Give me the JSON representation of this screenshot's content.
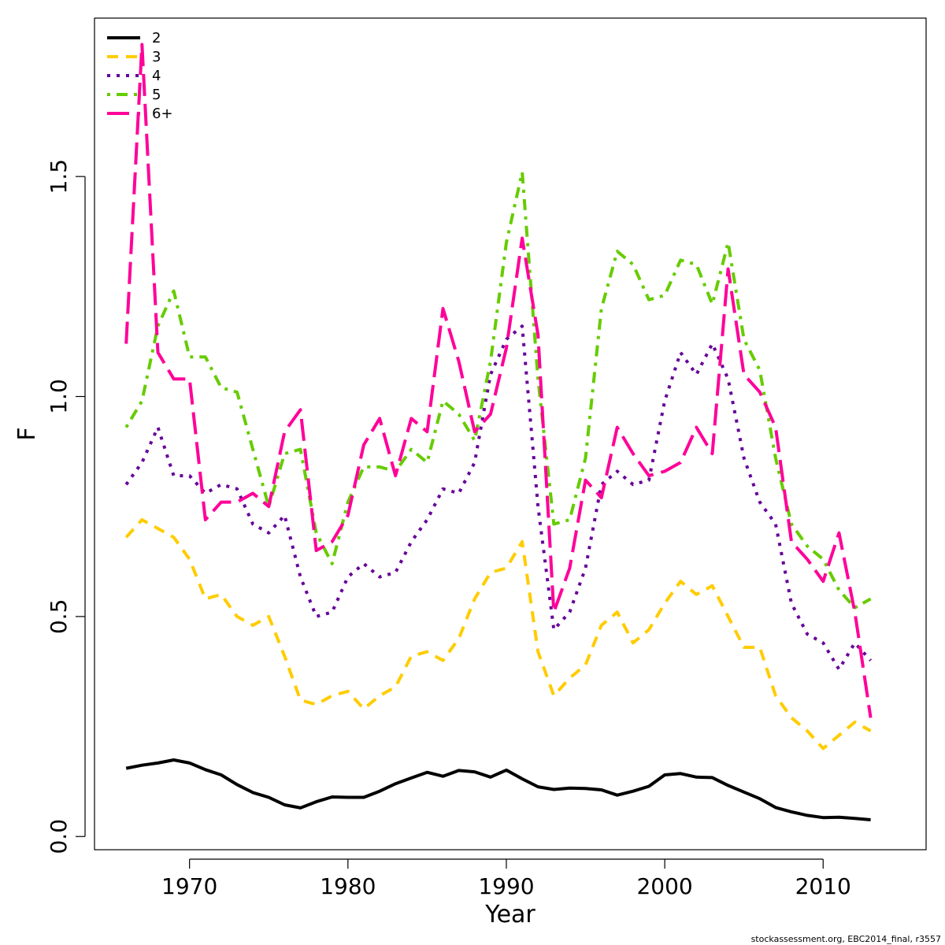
{
  "chart_data": {
    "type": "line",
    "xlabel": "Year",
    "ylabel": "F",
    "xlim": [
      1964,
      2016.5
    ],
    "ylim": [
      -0.03,
      1.86
    ],
    "xticks": [
      1970,
      1980,
      1990,
      2000,
      2010
    ],
    "yticks": [
      0.0,
      0.5,
      1.0,
      1.5
    ],
    "xtick_labels": [
      "1970",
      "1980",
      "1990",
      "2000",
      "2010"
    ],
    "ytick_labels": [
      "0.0",
      "0.5",
      "1.0",
      "1.5"
    ],
    "grid": false,
    "legend_position": "top-left",
    "x": [
      1966,
      1967,
      1968,
      1969,
      1970,
      1971,
      1972,
      1973,
      1974,
      1975,
      1976,
      1977,
      1978,
      1979,
      1980,
      1981,
      1982,
      1983,
      1984,
      1985,
      1986,
      1987,
      1988,
      1989,
      1990,
      1991,
      1992,
      1993,
      1994,
      1995,
      1996,
      1997,
      1998,
      1999,
      2000,
      2001,
      2002,
      2003,
      2004,
      2005,
      2006,
      2007,
      2008,
      2009,
      2010,
      2011,
      2012,
      2013
    ],
    "series": [
      {
        "name": "2",
        "color": "#000000",
        "dash": "solid",
        "values": [
          0.155,
          0.162,
          0.167,
          0.174,
          0.167,
          0.152,
          0.14,
          0.118,
          0.1,
          0.089,
          0.072,
          0.065,
          0.079,
          0.09,
          0.089,
          0.089,
          0.103,
          0.12,
          0.133,
          0.146,
          0.137,
          0.15,
          0.147,
          0.135,
          0.151,
          0.131,
          0.113,
          0.107,
          0.11,
          0.109,
          0.106,
          0.094,
          0.103,
          0.114,
          0.14,
          0.143,
          0.135,
          0.134,
          0.116,
          0.101,
          0.086,
          0.066,
          0.056,
          0.048,
          0.043,
          0.044,
          0.041,
          0.038
        ]
      },
      {
        "name": "3",
        "color": "#FFCC00",
        "dash": "dashed",
        "values": [
          0.68,
          0.72,
          0.7,
          0.68,
          0.63,
          0.54,
          0.55,
          0.5,
          0.48,
          0.5,
          0.41,
          0.31,
          0.3,
          0.32,
          0.33,
          0.29,
          0.32,
          0.34,
          0.41,
          0.42,
          0.4,
          0.45,
          0.54,
          0.6,
          0.61,
          0.67,
          0.42,
          0.32,
          0.36,
          0.39,
          0.48,
          0.51,
          0.44,
          0.47,
          0.53,
          0.58,
          0.55,
          0.57,
          0.5,
          0.43,
          0.43,
          0.32,
          0.27,
          0.24,
          0.2,
          0.23,
          0.26,
          0.24
        ]
      },
      {
        "name": "4",
        "color": "#660099",
        "dash": "dotted",
        "values": [
          0.8,
          0.85,
          0.93,
          0.82,
          0.82,
          0.78,
          0.8,
          0.79,
          0.71,
          0.69,
          0.73,
          0.59,
          0.5,
          0.51,
          0.59,
          0.62,
          0.59,
          0.6,
          0.67,
          0.72,
          0.79,
          0.78,
          0.85,
          1.05,
          1.13,
          1.16,
          0.75,
          0.47,
          0.51,
          0.61,
          0.8,
          0.83,
          0.8,
          0.81,
          0.99,
          1.1,
          1.05,
          1.12,
          1.04,
          0.86,
          0.76,
          0.71,
          0.53,
          0.46,
          0.44,
          0.38,
          0.44,
          0.4
        ]
      },
      {
        "name": "5",
        "color": "#66CC00",
        "dash": "dotdash",
        "values": [
          0.93,
          0.99,
          1.16,
          1.24,
          1.09,
          1.09,
          1.02,
          1.01,
          0.88,
          0.75,
          0.87,
          0.88,
          0.69,
          0.62,
          0.76,
          0.84,
          0.84,
          0.83,
          0.88,
          0.85,
          0.99,
          0.96,
          0.9,
          1.08,
          1.35,
          1.51,
          1.04,
          0.71,
          0.72,
          0.86,
          1.2,
          1.33,
          1.3,
          1.22,
          1.23,
          1.31,
          1.3,
          1.21,
          1.35,
          1.13,
          1.06,
          0.86,
          0.71,
          0.66,
          0.63,
          0.56,
          0.52,
          0.54
        ]
      },
      {
        "name": "6+",
        "color": "#FF0099",
        "dash": "longdash",
        "values": [
          1.12,
          1.8,
          1.1,
          1.04,
          1.04,
          0.72,
          0.76,
          0.76,
          0.78,
          0.75,
          0.92,
          0.97,
          0.65,
          0.67,
          0.73,
          0.89,
          0.95,
          0.82,
          0.95,
          0.92,
          1.2,
          1.08,
          0.92,
          0.96,
          1.11,
          1.36,
          1.14,
          0.51,
          0.61,
          0.81,
          0.77,
          0.93,
          0.87,
          0.82,
          0.83,
          0.85,
          0.93,
          0.87,
          1.29,
          1.05,
          1.01,
          0.93,
          0.67,
          0.63,
          0.58,
          0.69,
          0.51,
          0.27
        ]
      }
    ]
  },
  "footer": "stockassessment.org, EBC2014_final, r3557"
}
